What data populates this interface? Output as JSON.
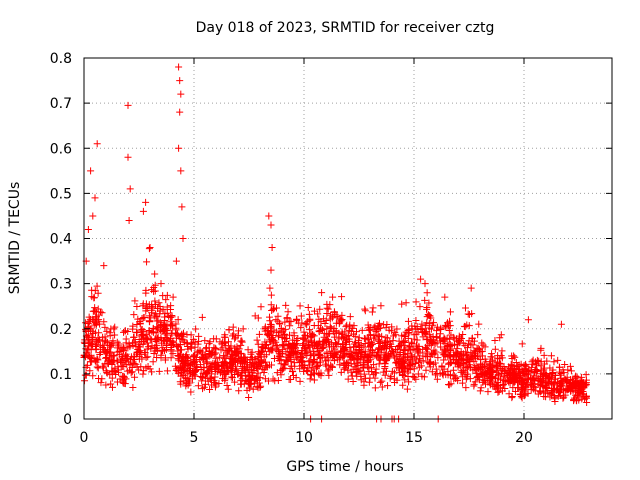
{
  "chart_data": {
    "type": "scatter",
    "title": "Day 018 of 2023, SRMTID for receiver cztg",
    "xlabel": "GPS time / hours",
    "ylabel": "SRMTID / TECUs",
    "xlim": [
      0,
      24
    ],
    "ylim": [
      0,
      0.8
    ],
    "xticks": [
      0,
      5,
      10,
      15,
      20
    ],
    "xtick_labels": [
      "0",
      "5",
      "10",
      "15",
      "20"
    ],
    "yticks": [
      0,
      0.1,
      0.2,
      0.3,
      0.4,
      0.5,
      0.6,
      0.7,
      0.8
    ],
    "ytick_labels": [
      "0",
      "0.1",
      "0.2",
      "0.3",
      "0.4",
      "0.5",
      "0.6",
      "0.7",
      "0.8"
    ],
    "grid": true,
    "marker": "+",
    "color": "#ff0000",
    "series": [
      {
        "name": "SRMTID",
        "description": "estimated per-epoch SRMTID values (dense scatter, ~30 s sampling approximated)",
        "profile": [
          {
            "t": 0.0,
            "base": 0.14
          },
          {
            "t": 0.5,
            "base": 0.2
          },
          {
            "t": 1.0,
            "base": 0.14
          },
          {
            "t": 2.0,
            "base": 0.13
          },
          {
            "t": 3.0,
            "base": 0.2
          },
          {
            "t": 4.0,
            "base": 0.18
          },
          {
            "t": 4.5,
            "base": 0.13
          },
          {
            "t": 5.0,
            "base": 0.12
          },
          {
            "t": 6.0,
            "base": 0.12
          },
          {
            "t": 7.0,
            "base": 0.13
          },
          {
            "t": 7.5,
            "base": 0.09
          },
          {
            "t": 8.5,
            "base": 0.17
          },
          {
            "t": 9.5,
            "base": 0.15
          },
          {
            "t": 10.5,
            "base": 0.16
          },
          {
            "t": 11.5,
            "base": 0.17
          },
          {
            "t": 12.5,
            "base": 0.13
          },
          {
            "t": 13.5,
            "base": 0.15
          },
          {
            "t": 14.5,
            "base": 0.13
          },
          {
            "t": 15.5,
            "base": 0.18
          },
          {
            "t": 16.5,
            "base": 0.14
          },
          {
            "t": 17.5,
            "base": 0.13
          },
          {
            "t": 18.5,
            "base": 0.1
          },
          {
            "t": 19.5,
            "base": 0.09
          },
          {
            "t": 20.5,
            "base": 0.09
          },
          {
            "t": 21.5,
            "base": 0.08
          },
          {
            "t": 22.5,
            "base": 0.07
          },
          {
            "t": 22.8,
            "base": 0.06
          }
        ],
        "spikes": [
          {
            "t": 0.1,
            "value": 0.35
          },
          {
            "t": 0.2,
            "value": 0.42
          },
          {
            "t": 0.3,
            "value": 0.55
          },
          {
            "t": 0.4,
            "value": 0.45
          },
          {
            "t": 0.5,
            "value": 0.49
          },
          {
            "t": 0.6,
            "value": 0.61
          },
          {
            "t": 0.9,
            "value": 0.34
          },
          {
            "t": 2.0,
            "value": 0.58
          },
          {
            "t": 2.0,
            "value": 0.695
          },
          {
            "t": 2.1,
            "value": 0.51
          },
          {
            "t": 2.05,
            "value": 0.44
          },
          {
            "t": 2.7,
            "value": 0.46
          },
          {
            "t": 2.8,
            "value": 0.48
          },
          {
            "t": 3.0,
            "value": 0.38
          },
          {
            "t": 3.5,
            "value": 0.3
          },
          {
            "t": 4.3,
            "value": 0.78
          },
          {
            "t": 4.35,
            "value": 0.75
          },
          {
            "t": 4.4,
            "value": 0.72
          },
          {
            "t": 4.35,
            "value": 0.68
          },
          {
            "t": 4.3,
            "value": 0.6
          },
          {
            "t": 4.4,
            "value": 0.55
          },
          {
            "t": 4.45,
            "value": 0.47
          },
          {
            "t": 4.5,
            "value": 0.4
          },
          {
            "t": 4.2,
            "value": 0.35
          },
          {
            "t": 8.4,
            "value": 0.45
          },
          {
            "t": 8.5,
            "value": 0.43
          },
          {
            "t": 8.55,
            "value": 0.38
          },
          {
            "t": 8.5,
            "value": 0.33
          },
          {
            "t": 8.45,
            "value": 0.29
          },
          {
            "t": 10.8,
            "value": 0.28
          },
          {
            "t": 11.3,
            "value": 0.27
          },
          {
            "t": 15.3,
            "value": 0.31
          },
          {
            "t": 15.5,
            "value": 0.3
          },
          {
            "t": 16.4,
            "value": 0.27
          },
          {
            "t": 17.6,
            "value": 0.29
          },
          {
            "t": 20.2,
            "value": 0.22
          },
          {
            "t": 21.7,
            "value": 0.21
          }
        ],
        "zero_points_t": [
          10.3,
          10.8,
          13.3,
          13.5,
          14.0,
          14.1,
          14.3,
          16.1
        ]
      }
    ]
  }
}
